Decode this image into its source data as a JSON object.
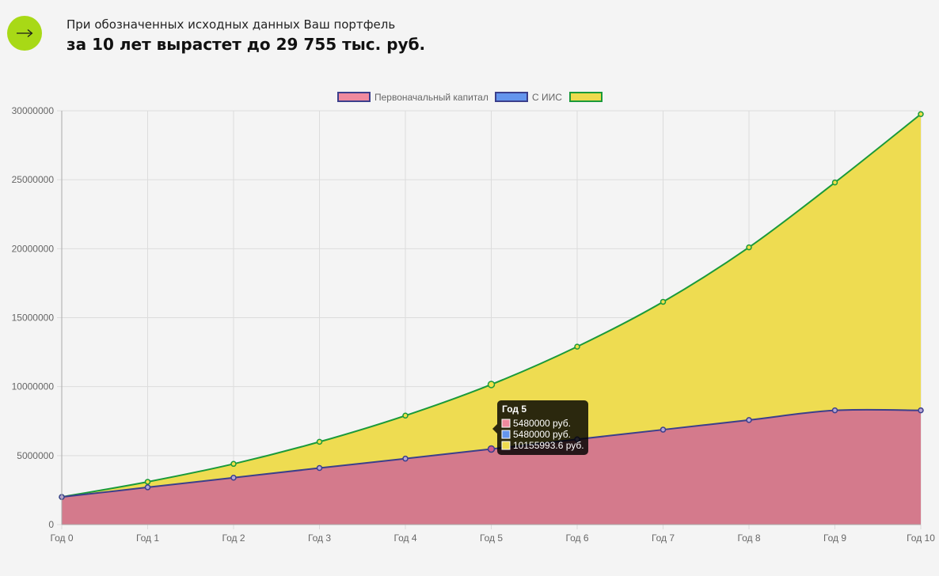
{
  "header": {
    "subtitle": "При обозначенных исходных данных Ваш портфель",
    "title": "за 10 лет вырастет до 29 755 тыс. руб.",
    "button_icon": "arrow-right-icon"
  },
  "colors": {
    "accent": "#a8d916",
    "initial_fill": "#d47a8c",
    "initial_legend": "#f08a9e",
    "initial_line": "#3b3f8c",
    "iis_legend": "#6495ed",
    "iis_line": "#3b3f8c",
    "total_fill": "#eedb4e",
    "total_line": "#1a9a3a"
  },
  "chart_data": {
    "type": "area",
    "categories": [
      "Год 0",
      "Год 1",
      "Год 2",
      "Год 3",
      "Год 4",
      "Год 5",
      "Год 6",
      "Год 7",
      "Год 8",
      "Год 9",
      "Год 10"
    ],
    "series": [
      {
        "name": "Первоначальный капитал",
        "values": [
          2000000,
          2700000,
          3400000,
          4100000,
          4780000,
          5480000,
          6180000,
          6880000,
          7580000,
          8280000,
          8280000
        ]
      },
      {
        "name": "С ИИС",
        "values": [
          2000000,
          2700000,
          3400000,
          4100000,
          4780000,
          5480000,
          6180000,
          6880000,
          7580000,
          8280000,
          8280000
        ]
      },
      {
        "name": "",
        "values": [
          2000000,
          3100000,
          4400000,
          6000000,
          7900000,
          10155993.6,
          12900000,
          16150000,
          20100000,
          24800000,
          29755000
        ]
      }
    ],
    "yticks": [
      "0",
      "5000000",
      "10000000",
      "15000000",
      "20000000",
      "25000000",
      "30000000"
    ],
    "ylim": [
      0,
      30000000
    ],
    "grid": true,
    "legend_position": "top-center",
    "tooltip": {
      "title": "Год 5",
      "rows": [
        "5480000 руб.",
        "5480000 руб.",
        "10155993.6 руб."
      ]
    }
  }
}
